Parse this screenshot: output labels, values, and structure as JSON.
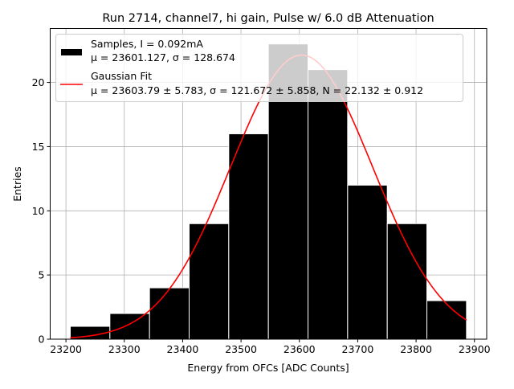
{
  "chart_data": {
    "type": "bar",
    "title": "Run 2714, channel7, hi gain, Pulse w/ 6.0 dB Attenuation",
    "xlabel": "Energy from OFCs [ADC Counts]",
    "ylabel": "Entries",
    "xlim": [
      23173,
      23921
    ],
    "ylim": [
      0,
      24.2
    ],
    "xticks": [
      23200,
      23300,
      23400,
      23500,
      23600,
      23700,
      23800,
      23900
    ],
    "yticks": [
      0,
      5,
      10,
      15,
      20
    ],
    "grid": true,
    "legend_placement": "top",
    "bin_edges": [
      23207.4,
      23275.3,
      23343.2,
      23411.1,
      23479.0,
      23546.9,
      23614.8,
      23682.7,
      23750.6,
      23818.5,
      23886.4
    ],
    "counts": [
      1,
      2,
      4,
      9,
      16,
      23,
      21,
      12,
      9,
      3
    ],
    "fit": {
      "type": "gaussian",
      "mu": 23603.79,
      "sigma": 121.672,
      "N": 22.132
    },
    "colors": {
      "bars": "#000000",
      "fit": "#ff0000",
      "grid": "#b0b0b0"
    },
    "legend": [
      {
        "line1": "Samples, I = 0.092mA",
        "line2": "μ = 23601.127, σ = 128.674"
      },
      {
        "line1": "Gaussian Fit",
        "line2": "μ = 23603.79 ± 5.783, σ = 121.672 ± 5.858, N = 22.132 ± 0.912"
      }
    ]
  }
}
